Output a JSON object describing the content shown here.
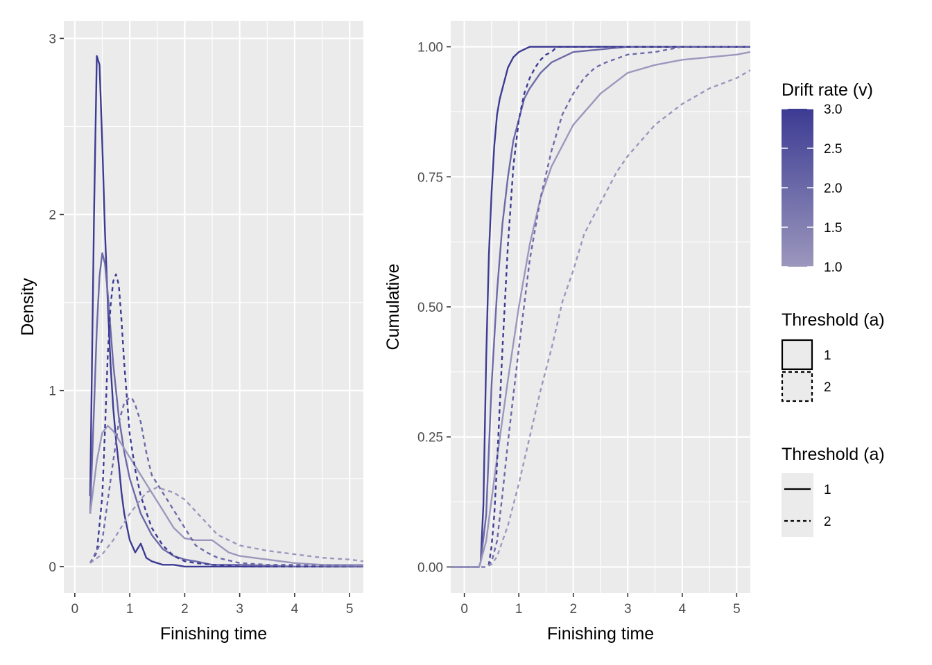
{
  "chart_data": [
    {
      "type": "line",
      "panel": "left",
      "xlabel": "Finishing time",
      "ylabel": "Density",
      "xlim": [
        -0.2,
        5.25
      ],
      "ylim": [
        -0.15,
        3.1
      ],
      "xticks": [
        0,
        1,
        2,
        3,
        4,
        5
      ],
      "xtick_labels": [
        "0",
        "1",
        "2",
        "3",
        "4",
        "5"
      ],
      "yticks": [
        0,
        1,
        2,
        3
      ],
      "ytick_labels": [
        "0",
        "1",
        "2",
        "3"
      ],
      "grid": true,
      "series": [
        {
          "v": 3.0,
          "a": 1,
          "x": [
            0.28,
            0.35,
            0.4,
            0.45,
            0.5,
            0.55,
            0.6,
            0.65,
            0.7,
            0.75,
            0.8,
            0.85,
            0.9,
            1.0,
            1.1,
            1.2,
            1.3,
            1.4,
            1.5,
            1.6,
            1.8,
            2.0,
            2.2,
            2.5,
            3.0,
            4.0,
            5.25
          ],
          "y": [
            0.4,
            2.0,
            2.9,
            2.85,
            2.4,
            1.9,
            1.5,
            1.15,
            0.9,
            0.72,
            0.58,
            0.42,
            0.3,
            0.15,
            0.08,
            0.13,
            0.05,
            0.03,
            0.02,
            0.01,
            0.01,
            0,
            0,
            0,
            0,
            0,
            0
          ]
        },
        {
          "v": 2.0,
          "a": 1,
          "x": [
            0.28,
            0.35,
            0.4,
            0.45,
            0.5,
            0.55,
            0.6,
            0.65,
            0.7,
            0.8,
            0.9,
            1.0,
            1.2,
            1.4,
            1.6,
            1.8,
            2.0,
            2.2,
            2.5,
            3.0,
            4.0,
            5.25
          ],
          "y": [
            0.3,
            0.9,
            1.35,
            1.65,
            1.78,
            1.72,
            1.55,
            1.35,
            1.15,
            0.85,
            0.65,
            0.5,
            0.3,
            0.18,
            0.1,
            0.06,
            0.04,
            0.03,
            0.01,
            0.01,
            0,
            0
          ]
        },
        {
          "v": 1.0,
          "a": 1,
          "x": [
            0.28,
            0.4,
            0.5,
            0.6,
            0.7,
            0.8,
            1.0,
            1.2,
            1.4,
            1.6,
            1.8,
            2.0,
            2.2,
            2.5,
            2.8,
            3.0,
            3.5,
            4.0,
            4.5,
            5.25
          ],
          "y": [
            0.3,
            0.6,
            0.76,
            0.8,
            0.77,
            0.72,
            0.62,
            0.52,
            0.42,
            0.32,
            0.22,
            0.16,
            0.15,
            0.15,
            0.08,
            0.06,
            0.04,
            0.02,
            0.01,
            0.01
          ]
        },
        {
          "v": 3.0,
          "a": 2,
          "x": [
            0.28,
            0.4,
            0.5,
            0.55,
            0.6,
            0.65,
            0.7,
            0.75,
            0.8,
            0.85,
            0.9,
            0.95,
            1.0,
            1.1,
            1.2,
            1.4,
            1.6,
            1.8,
            2.0,
            2.2,
            2.5,
            3.0,
            3.5,
            4.0,
            5.25
          ],
          "y": [
            0.02,
            0.08,
            0.4,
            0.78,
            1.2,
            1.48,
            1.62,
            1.66,
            1.6,
            1.4,
            1.15,
            0.95,
            0.75,
            0.55,
            0.4,
            0.22,
            0.12,
            0.06,
            0.03,
            0.02,
            0.01,
            0,
            0,
            0,
            0
          ]
        },
        {
          "v": 2.0,
          "a": 2,
          "x": [
            0.28,
            0.5,
            0.7,
            0.8,
            0.9,
            1.0,
            1.05,
            1.1,
            1.2,
            1.3,
            1.4,
            1.6,
            1.8,
            2.0,
            2.2,
            2.4,
            2.6,
            3.0,
            3.5,
            4.0,
            5.25
          ],
          "y": [
            0.02,
            0.15,
            0.6,
            0.82,
            0.93,
            0.96,
            0.95,
            0.92,
            0.82,
            0.65,
            0.52,
            0.42,
            0.32,
            0.22,
            0.12,
            0.08,
            0.05,
            0.02,
            0.01,
            0.01,
            0
          ]
        },
        {
          "v": 1.0,
          "a": 2,
          "x": [
            0.28,
            0.5,
            0.7,
            1.0,
            1.3,
            1.5,
            1.8,
            2.0,
            2.3,
            2.6,
            3.0,
            3.5,
            4.0,
            4.5,
            5.0,
            5.25
          ],
          "y": [
            0.02,
            0.07,
            0.15,
            0.3,
            0.42,
            0.45,
            0.42,
            0.38,
            0.28,
            0.18,
            0.12,
            0.09,
            0.07,
            0.05,
            0.04,
            0.03
          ]
        }
      ]
    },
    {
      "type": "line",
      "panel": "right",
      "xlabel": "Finishing time",
      "ylabel": "Cumulative",
      "xlim": [
        -0.25,
        5.25
      ],
      "ylim": [
        -0.05,
        1.05
      ],
      "xticks": [
        0,
        1,
        2,
        3,
        4,
        5
      ],
      "xtick_labels": [
        "0",
        "1",
        "2",
        "3",
        "4",
        "5"
      ],
      "yticks": [
        0,
        0.25,
        0.5,
        0.75,
        1
      ],
      "ytick_labels": [
        "0.00",
        "0.25",
        "0.50",
        "0.75",
        "1.00"
      ],
      "grid": true,
      "series": [
        {
          "v": 3.0,
          "a": 1,
          "x": [
            -0.25,
            0.27,
            0.3,
            0.35,
            0.4,
            0.45,
            0.5,
            0.55,
            0.6,
            0.65,
            0.7,
            0.8,
            0.9,
            1.0,
            1.1,
            1.2,
            1.4,
            1.6,
            2.0,
            5.25
          ],
          "y": [
            0,
            0,
            0.01,
            0.12,
            0.4,
            0.6,
            0.72,
            0.81,
            0.87,
            0.9,
            0.92,
            0.96,
            0.98,
            0.99,
            0.995,
            1,
            1,
            1,
            1,
            1
          ]
        },
        {
          "v": 2.0,
          "a": 1,
          "x": [
            -0.25,
            0.27,
            0.3,
            0.4,
            0.5,
            0.6,
            0.7,
            0.8,
            0.9,
            1.0,
            1.1,
            1.2,
            1.4,
            1.6,
            1.8,
            2.0,
            2.5,
            3.0,
            5.25
          ],
          "y": [
            0,
            0,
            0.01,
            0.1,
            0.35,
            0.53,
            0.66,
            0.75,
            0.82,
            0.86,
            0.9,
            0.92,
            0.95,
            0.97,
            0.98,
            0.99,
            0.995,
            1,
            1
          ]
        },
        {
          "v": 1.0,
          "a": 1,
          "x": [
            -0.25,
            0.27,
            0.3,
            0.4,
            0.5,
            0.6,
            0.8,
            1.0,
            1.2,
            1.4,
            1.6,
            1.8,
            2.0,
            2.5,
            3.0,
            3.5,
            4.0,
            4.5,
            5.0,
            5.25
          ],
          "y": [
            0,
            0,
            0.01,
            0.05,
            0.13,
            0.21,
            0.36,
            0.5,
            0.62,
            0.71,
            0.77,
            0.81,
            0.85,
            0.91,
            0.95,
            0.965,
            0.975,
            0.98,
            0.985,
            0.99
          ]
        },
        {
          "v": 3.0,
          "a": 2,
          "x": [
            -0.25,
            0.4,
            0.45,
            0.5,
            0.55,
            0.6,
            0.7,
            0.8,
            0.9,
            1.0,
            1.1,
            1.2,
            1.3,
            1.4,
            1.5,
            1.6,
            1.7,
            2.0,
            5.25
          ],
          "y": [
            0,
            0,
            0.005,
            0.04,
            0.1,
            0.2,
            0.42,
            0.62,
            0.77,
            0.86,
            0.91,
            0.94,
            0.96,
            0.975,
            0.985,
            0.99,
            1,
            1,
            1
          ]
        },
        {
          "v": 2.0,
          "a": 2,
          "x": [
            -0.25,
            0.4,
            0.5,
            0.6,
            0.7,
            0.8,
            0.9,
            1.0,
            1.2,
            1.4,
            1.6,
            1.8,
            2.0,
            2.2,
            2.4,
            2.6,
            3.0,
            3.5,
            4.0,
            5.25
          ],
          "y": [
            0,
            0,
            0.01,
            0.05,
            0.14,
            0.24,
            0.33,
            0.42,
            0.59,
            0.71,
            0.8,
            0.87,
            0.91,
            0.94,
            0.96,
            0.97,
            0.985,
            0.99,
            1,
            1
          ]
        },
        {
          "v": 1.0,
          "a": 2,
          "x": [
            -0.25,
            0.4,
            0.5,
            0.6,
            0.8,
            1.0,
            1.2,
            1.4,
            1.6,
            1.8,
            2.0,
            2.2,
            2.5,
            2.8,
            3.0,
            3.5,
            4.0,
            4.5,
            5.0,
            5.25
          ],
          "y": [
            0,
            0,
            0.005,
            0.02,
            0.08,
            0.16,
            0.25,
            0.34,
            0.42,
            0.51,
            0.57,
            0.64,
            0.7,
            0.76,
            0.79,
            0.85,
            0.89,
            0.92,
            0.94,
            0.955
          ]
        }
      ]
    }
  ],
  "legend": {
    "color": {
      "title": "Drift rate (v)",
      "breaks": [
        "3.0",
        "2.5",
        "2.0",
        "1.5",
        "1.0"
      ],
      "high_color": "#3c3b93",
      "low_color": "#9b97bd"
    },
    "fill_linetype": {
      "title": "Threshold (a)",
      "items": [
        {
          "label": "1",
          "linetype": "solid"
        },
        {
          "label": "2",
          "linetype": "dashed"
        }
      ]
    },
    "linetype": {
      "title": "Threshold (a)",
      "items": [
        {
          "label": "1",
          "linetype": "solid"
        },
        {
          "label": "2",
          "linetype": "dashed"
        }
      ]
    }
  },
  "colors": {
    "panel_bg": "#ebebeb",
    "grid": "#ffffff",
    "v3": "#3c3b93",
    "v2": "#6c68a8",
    "v1": "#9b97bd"
  }
}
